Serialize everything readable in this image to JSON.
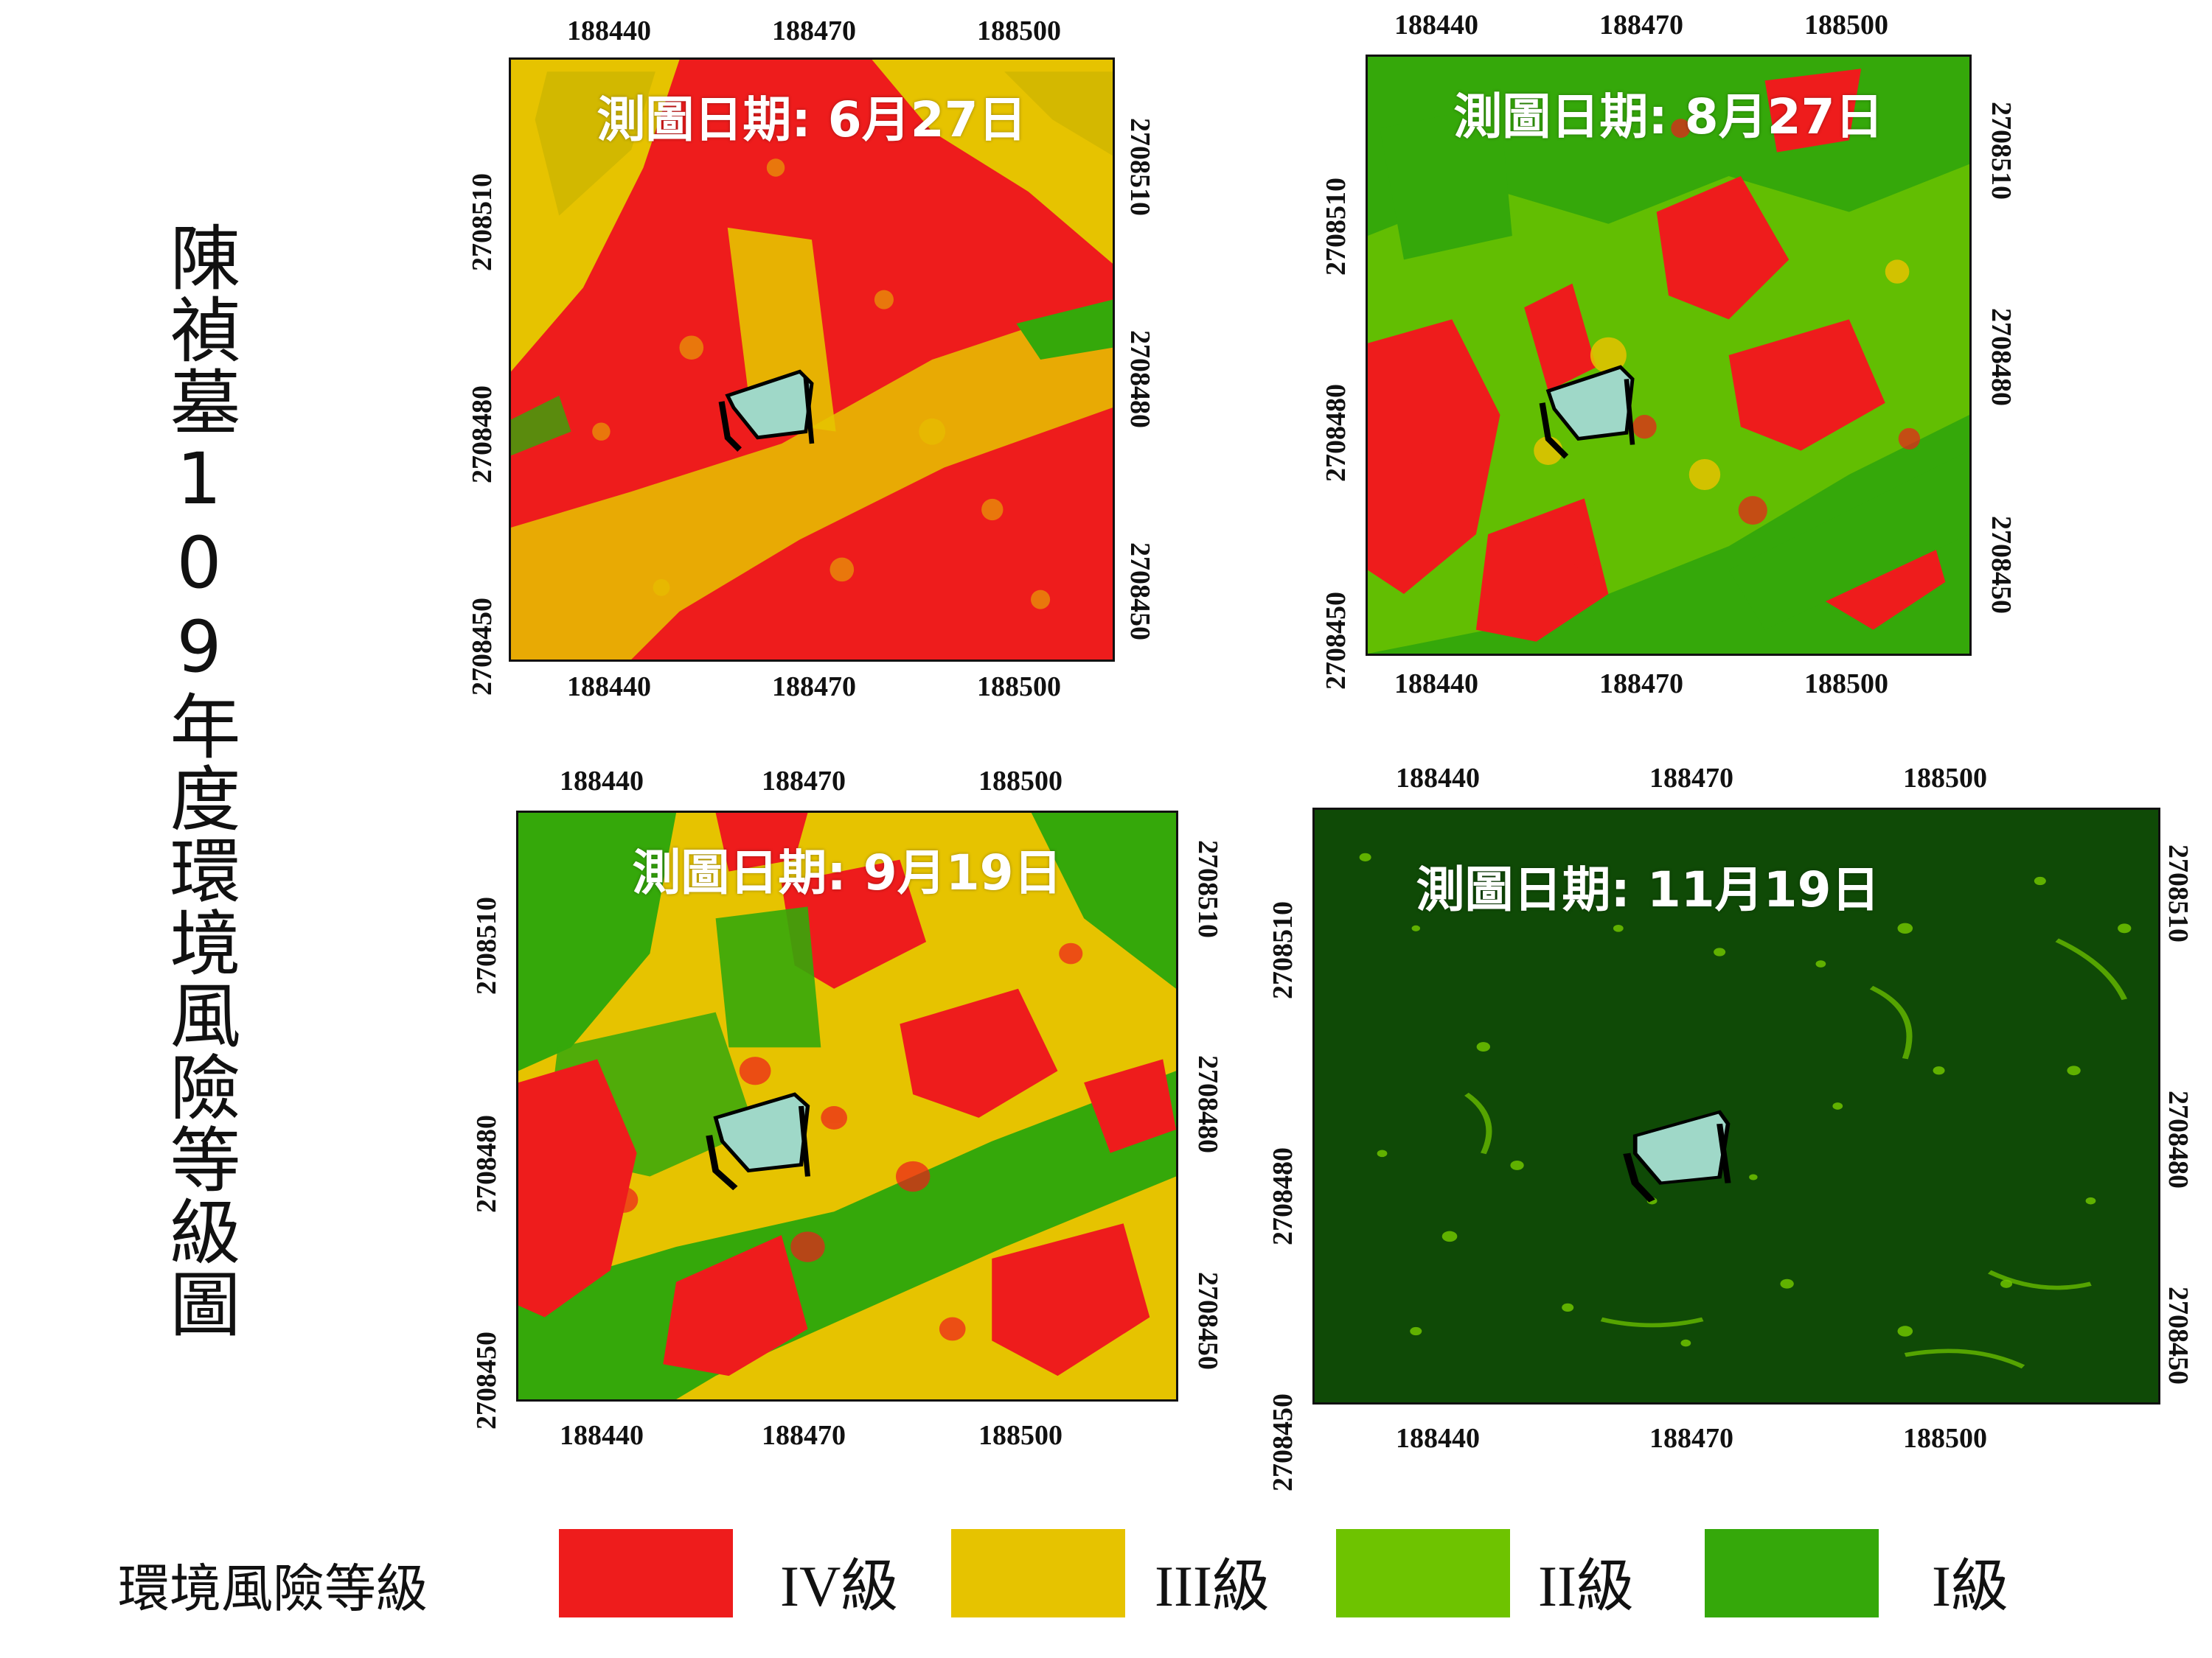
{
  "title": "陳禎墓109年度環境風險等級圖",
  "colors": {
    "iv": "#ee1c1c",
    "iii": "#e6c300",
    "ii": "#6ec300",
    "i": "#35a80a",
    "dark": "#0f4a06",
    "site_fill": "#9fd8c8"
  },
  "panels": [
    {
      "id": "p1",
      "date": "測圖日期:  6月27日",
      "x_ticks": [
        "188440",
        "188470",
        "188500"
      ],
      "y_ticks": [
        "2708510",
        "2708480",
        "2708450"
      ]
    },
    {
      "id": "p2",
      "date": "測圖日期:  8月27日",
      "x_ticks": [
        "188440",
        "188470",
        "188500"
      ],
      "y_ticks": [
        "2708510",
        "2708480",
        "2708450"
      ]
    },
    {
      "id": "p3",
      "date": "測圖日期: 9月19日",
      "x_ticks": [
        "188440",
        "188470",
        "188500"
      ],
      "y_ticks": [
        "2708510",
        "2708480",
        "2708450"
      ]
    },
    {
      "id": "p4",
      "date": "測圖日期:  11月19日",
      "x_ticks": [
        "188440",
        "188470",
        "188500"
      ],
      "y_ticks": [
        "2708510",
        "2708480",
        "2708450"
      ]
    }
  ],
  "legend": {
    "title": "環境風險等級",
    "items": [
      {
        "label": "IV級",
        "color": "#ee1c1c"
      },
      {
        "label": "III級",
        "color": "#e6c300"
      },
      {
        "label": "II級",
        "color": "#6ec300"
      },
      {
        "label": "I級",
        "color": "#35a80a"
      }
    ]
  }
}
